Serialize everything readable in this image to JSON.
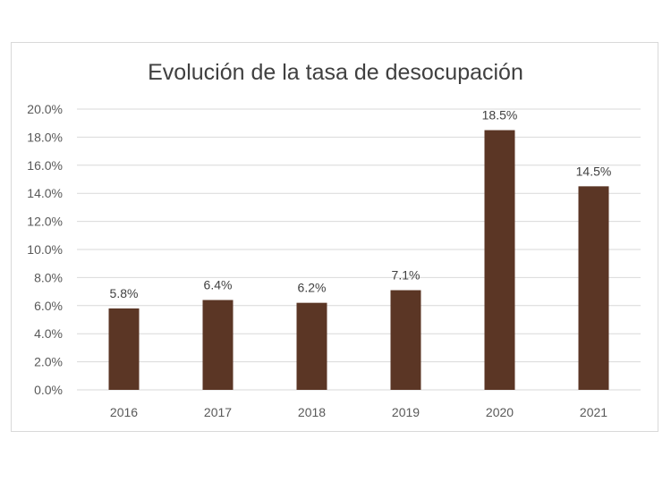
{
  "chart_data": {
    "type": "bar",
    "title": "Evolución de la tasa de desocupación",
    "xlabel": "",
    "ylabel": "",
    "categories": [
      "2016",
      "2017",
      "2018",
      "2019",
      "2020",
      "2021"
    ],
    "values": [
      5.8,
      6.4,
      6.2,
      7.1,
      18.5,
      14.5
    ],
    "data_labels": [
      "5.8%",
      "6.4%",
      "6.2%",
      "7.1%",
      "18.5%",
      "14.5%"
    ],
    "yticks": [
      "0.0%",
      "2.0%",
      "4.0%",
      "6.0%",
      "8.0%",
      "10.0%",
      "12.0%",
      "14.0%",
      "16.0%",
      "18.0%",
      "20.0%"
    ],
    "ylim": [
      0,
      20
    ],
    "grid": true,
    "legend": "none",
    "bar_color": "#5b3625",
    "grid_color": "#d9d9d9"
  }
}
